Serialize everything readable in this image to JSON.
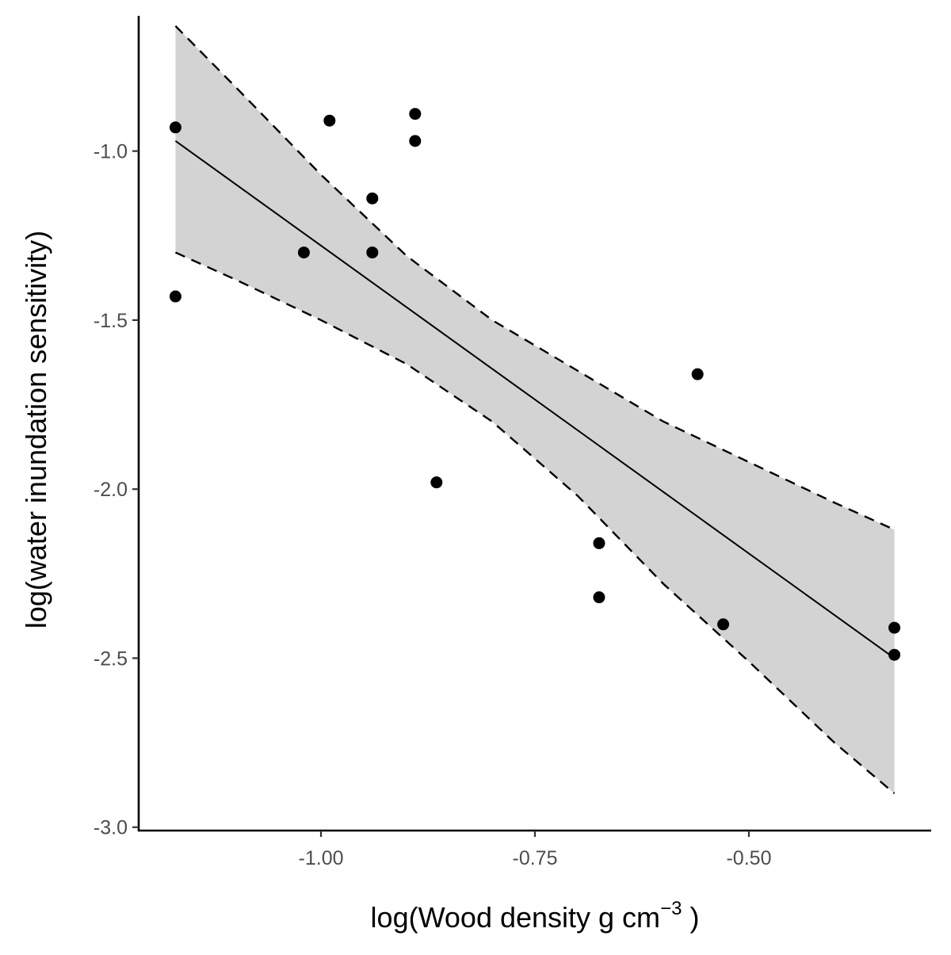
{
  "chart_data": {
    "type": "scatter",
    "title": "",
    "xlabel": "log(Wood density g cm",
    "xlabel_superscript": "−3",
    "xlabel_suffix": " )",
    "ylabel": "log(water inundation sensitivity)",
    "xlim": [
      -1.213,
      -0.287
    ],
    "ylim": [
      -3.01,
      -0.6
    ],
    "x_ticks": [
      -1.0,
      -0.75,
      -0.5
    ],
    "x_tick_labels": [
      "-1.00",
      "-0.75",
      "-0.50"
    ],
    "y_ticks": [
      -3.0,
      -2.5,
      -2.0,
      -1.5,
      -1.0
    ],
    "y_tick_labels": [
      "-3.0",
      "-2.5",
      "-2.0",
      "-1.5",
      "-1.0"
    ],
    "grid": false,
    "legend": "none",
    "points": [
      {
        "x": -1.17,
        "y": -0.93
      },
      {
        "x": -1.17,
        "y": -1.43
      },
      {
        "x": -0.99,
        "y": -0.91
      },
      {
        "x": -1.02,
        "y": -1.3
      },
      {
        "x": -0.94,
        "y": -1.14
      },
      {
        "x": -0.94,
        "y": -1.3
      },
      {
        "x": -0.89,
        "y": -0.89
      },
      {
        "x": -0.89,
        "y": -0.97
      },
      {
        "x": -0.865,
        "y": -1.98
      },
      {
        "x": -0.675,
        "y": -2.16
      },
      {
        "x": -0.675,
        "y": -2.32
      },
      {
        "x": -0.56,
        "y": -1.66
      },
      {
        "x": -0.53,
        "y": -2.4
      },
      {
        "x": -0.33,
        "y": -2.41
      },
      {
        "x": -0.33,
        "y": -2.49
      }
    ],
    "fit_line": {
      "x": [
        -1.17,
        -0.33
      ],
      "y": [
        -0.97,
        -2.5
      ]
    },
    "confidence_band": {
      "x": [
        -1.17,
        -1.1,
        -1.0,
        -0.9,
        -0.8,
        -0.7,
        -0.6,
        -0.5,
        -0.4,
        -0.33
      ],
      "upper": [
        -0.63,
        -0.81,
        -1.07,
        -1.31,
        -1.5,
        -1.65,
        -1.8,
        -1.92,
        -2.04,
        -2.12
      ],
      "lower": [
        -1.3,
        -1.38,
        -1.5,
        -1.63,
        -1.8,
        -2.02,
        -2.28,
        -2.51,
        -2.75,
        -2.9
      ]
    },
    "colors": {
      "points": "#000000",
      "fit_line": "#000000",
      "band_fill": "#d3d3d3",
      "band_edge": "#000000",
      "tick_labels": "#4d4d4d"
    }
  }
}
